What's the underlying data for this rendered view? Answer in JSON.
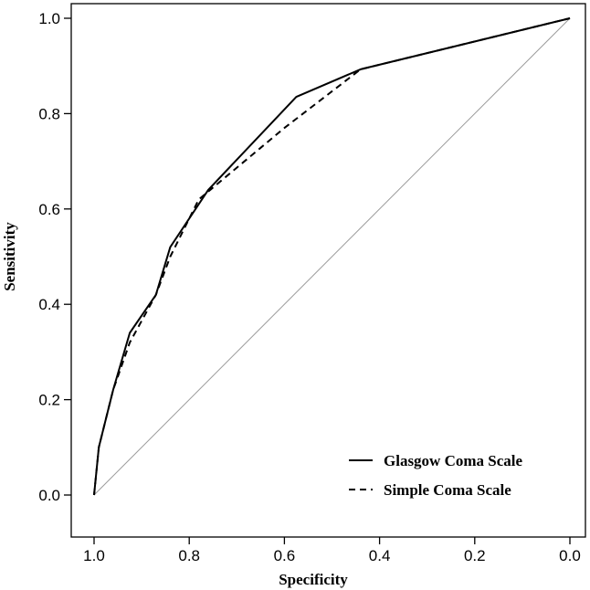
{
  "chart_data": {
    "type": "line",
    "title": "",
    "xlabel": "Specificity",
    "ylabel": "Sensitivity",
    "xlim": [
      1.0,
      0.0
    ],
    "ylim": [
      0.0,
      1.0
    ],
    "x_reversed": true,
    "grid": false,
    "legend_position": "bottom-right",
    "xticks": [
      1.0,
      0.8,
      0.6,
      0.4,
      0.2,
      0.0
    ],
    "xtick_labels": [
      "1.0",
      "0.8",
      "0.6",
      "0.4",
      "0.2",
      "0.0"
    ],
    "yticks": [
      0.0,
      0.2,
      0.4,
      0.6,
      0.8,
      1.0
    ],
    "ytick_labels": [
      "0.0",
      "0.2",
      "0.4",
      "0.6",
      "0.8",
      "1.0"
    ],
    "reference_line": {
      "name": "chance-diagonal",
      "x": [
        1.0,
        0.0
      ],
      "y": [
        0.0,
        1.0
      ],
      "color": "#9a9a9a"
    },
    "series": [
      {
        "name": "Glasgow Coma Scale",
        "style": "solid",
        "color": "#000000",
        "x": [
          1.0,
          0.995,
          0.99,
          0.96,
          0.925,
          0.87,
          0.84,
          0.76,
          0.575,
          0.44,
          0.0
        ],
        "y": [
          0.0,
          0.05,
          0.1,
          0.22,
          0.34,
          0.42,
          0.52,
          0.64,
          0.835,
          0.893,
          1.0
        ]
      },
      {
        "name": "Simple Coma Scale",
        "style": "dashed",
        "color": "#000000",
        "x": [
          1.0,
          0.995,
          0.99,
          0.96,
          0.925,
          0.87,
          0.84,
          0.78,
          0.6,
          0.44,
          0.0
        ],
        "y": [
          0.0,
          0.05,
          0.1,
          0.22,
          0.32,
          0.42,
          0.5,
          0.62,
          0.77,
          0.893,
          1.0
        ]
      }
    ],
    "legend": {
      "entries": [
        "Glasgow Coma Scale",
        "Simple Coma Scale"
      ]
    }
  }
}
